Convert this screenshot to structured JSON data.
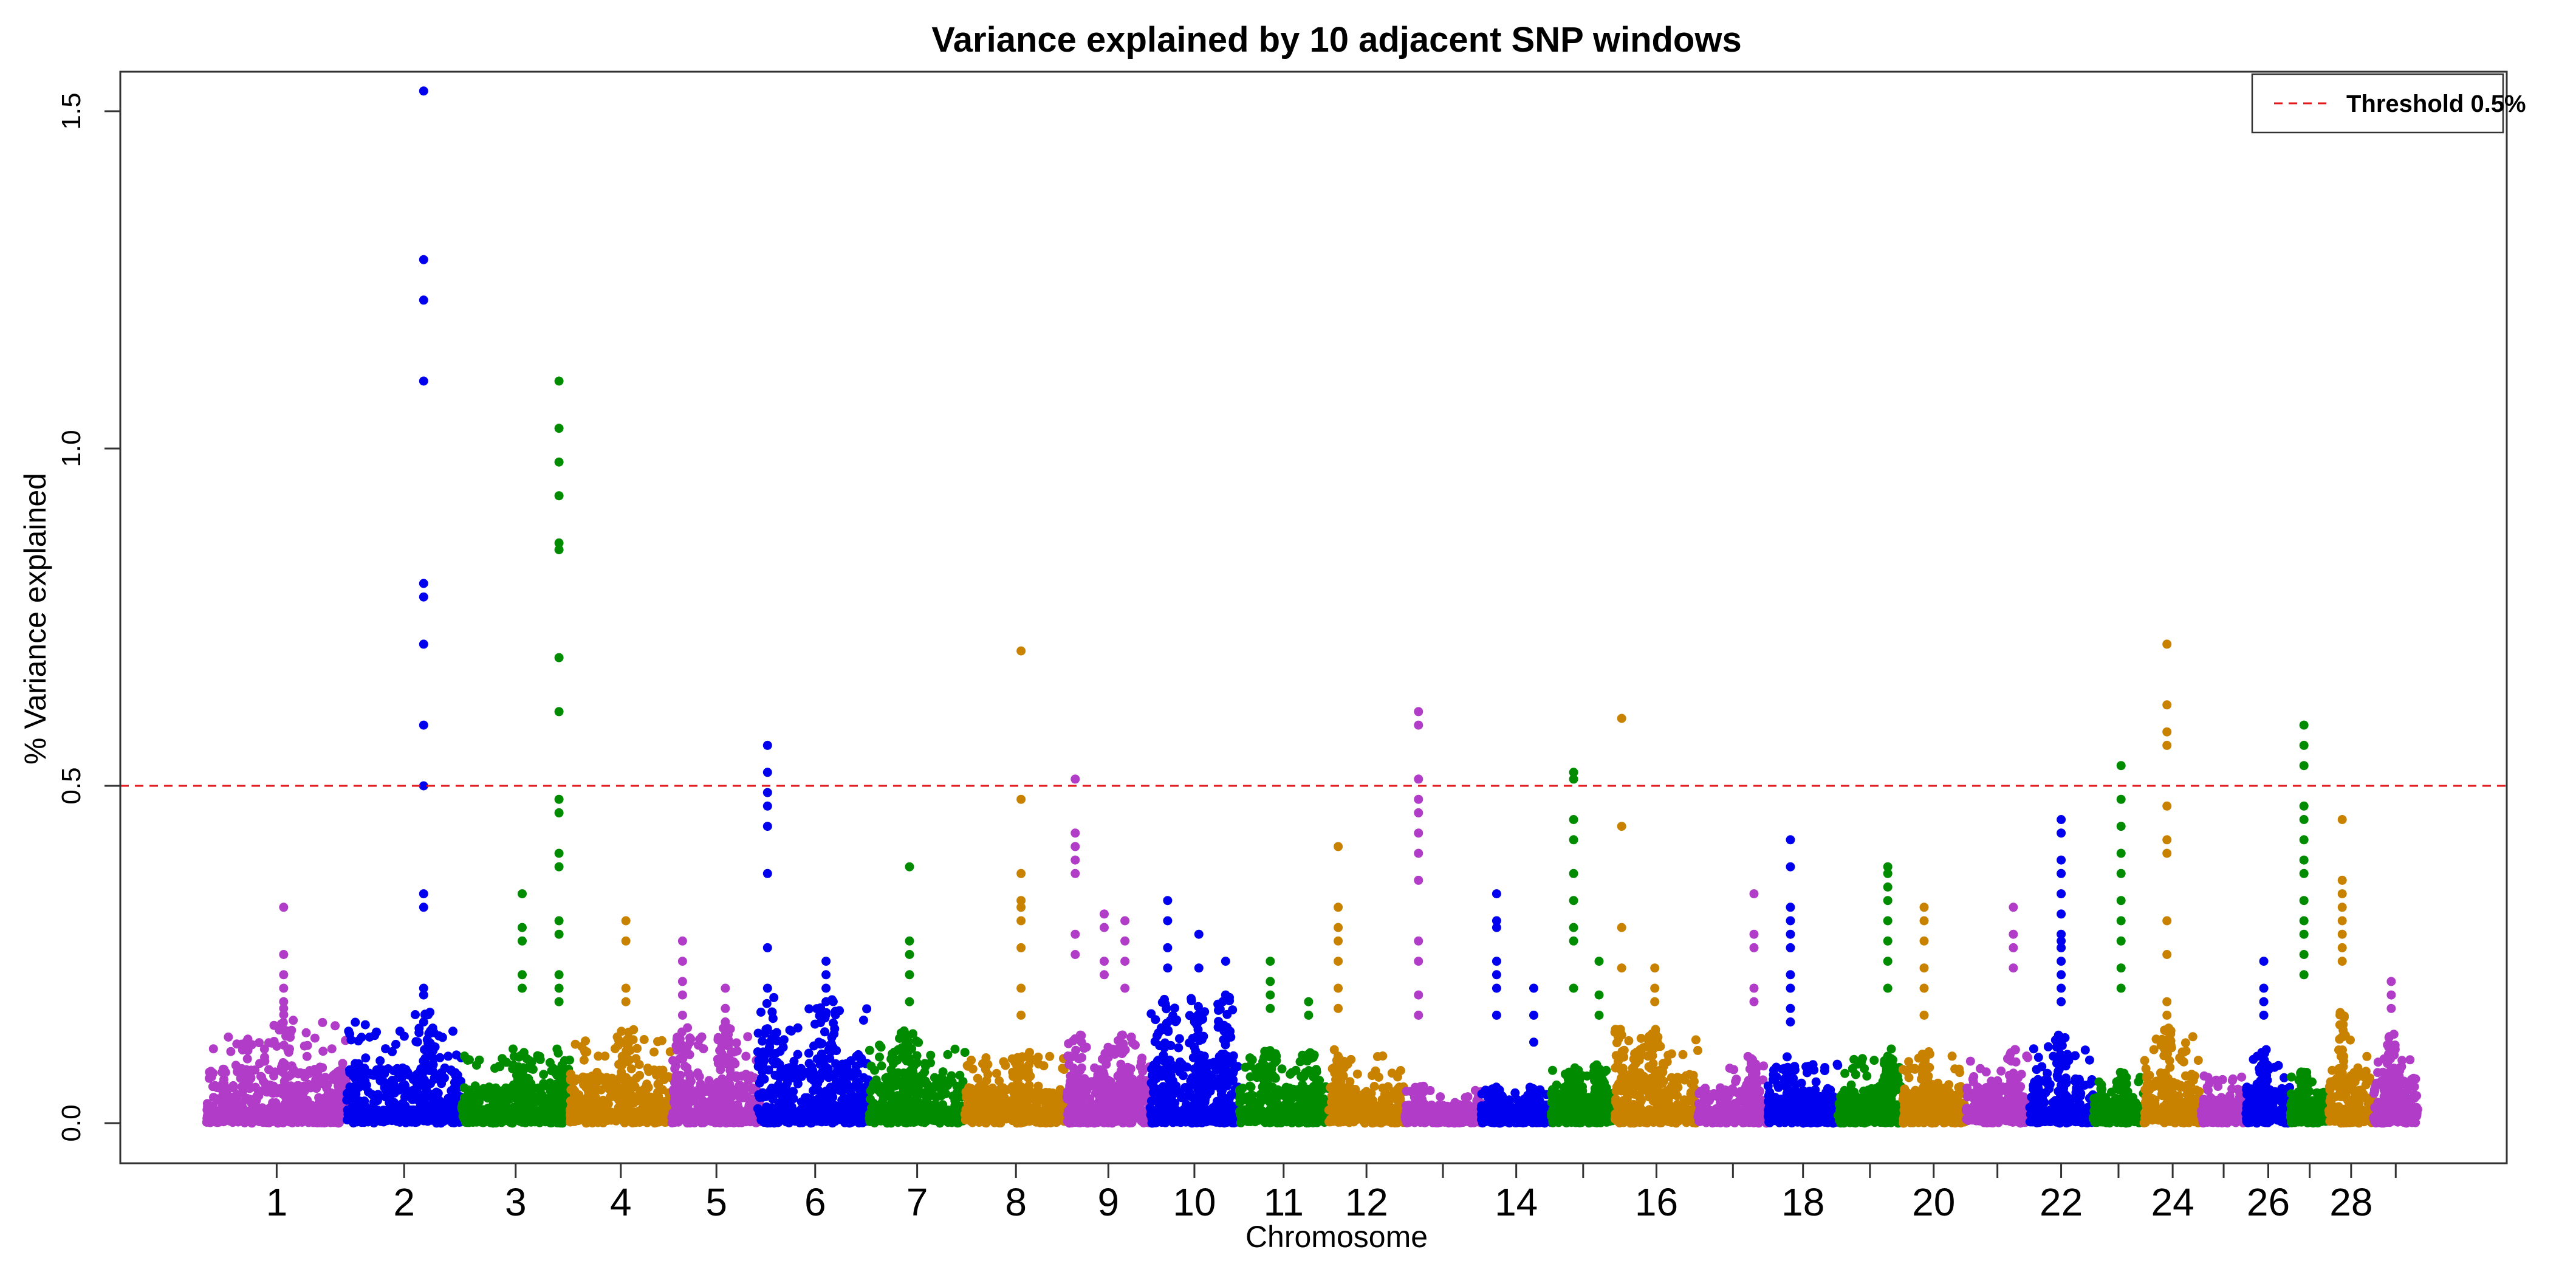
{
  "chart_data": {
    "type": "scatter",
    "subtype": "manhattan",
    "title": "Variance explained by 10 adjacent SNP windows",
    "xlabel": "Chromosome",
    "ylabel": "% Variance explained",
    "ylim": [
      -0.06,
      1.58
    ],
    "yticks": [
      0.0,
      0.5,
      1.0,
      1.5
    ],
    "ytick_labels": [
      "0.0",
      "0.5",
      "1.0",
      "1.5"
    ],
    "threshold": {
      "value": 0.5,
      "color": "#e31a1c",
      "style": "dashed"
    },
    "legend": {
      "label": "Threshold 0.5%",
      "position": "top-right"
    },
    "palette": [
      "#b03cc8",
      "#0000ee",
      "#008b00",
      "#c88200"
    ],
    "chromosomes": [
      {
        "chr": 1,
        "label": "1",
        "start": 0.0,
        "end": 11.0,
        "color": "#b03cc8",
        "base_max": 0.15,
        "peaks": [
          {
            "pos": 0.55,
            "vals": [
              0.32,
              0.25,
              0.22,
              0.2,
              0.18,
              0.17
            ]
          }
        ]
      },
      {
        "chr": 2,
        "label": "2",
        "start": 11.0,
        "end": 20.0,
        "color": "#0000ee",
        "base_max": 0.15,
        "peaks": [
          {
            "pos": 0.67,
            "vals": [
              1.53,
              1.28,
              1.22,
              1.1,
              0.8,
              0.78,
              0.71,
              0.59,
              0.5,
              0.34,
              0.32,
              0.2,
              0.19,
              0.15
            ]
          }
        ]
      },
      {
        "chr": 3,
        "label": "3",
        "start": 20.0,
        "end": 28.5,
        "color": "#008b00",
        "base_max": 0.1,
        "peaks": [
          {
            "pos": 0.56,
            "vals": [
              0.34,
              0.29,
              0.27,
              0.22,
              0.2
            ]
          },
          {
            "pos": 0.9,
            "vals": [
              1.1,
              1.03,
              0.98,
              0.93,
              0.86,
              0.85,
              0.69,
              0.61,
              0.48,
              0.46,
              0.4,
              0.38,
              0.3,
              0.28,
              0.22,
              0.2,
              0.18
            ]
          }
        ]
      },
      {
        "chr": 4,
        "label": "4",
        "start": 28.5,
        "end": 36.5,
        "color": "#c88200",
        "base_max": 0.13,
        "peaks": [
          {
            "pos": 0.55,
            "vals": [
              0.3,
              0.27,
              0.2,
              0.18
            ]
          }
        ]
      },
      {
        "chr": 5,
        "label": "5",
        "start": 36.5,
        "end": 43.5,
        "color": "#b03cc8",
        "base_max": 0.13,
        "peaks": [
          {
            "pos": 0.12,
            "vals": [
              0.27,
              0.24,
              0.21,
              0.19,
              0.16
            ]
          },
          {
            "pos": 0.6,
            "vals": [
              0.2,
              0.17,
              0.15
            ]
          }
        ]
      },
      {
        "chr": 6,
        "label": "6",
        "start": 43.5,
        "end": 52.0,
        "color": "#0000ee",
        "base_max": 0.17,
        "peaks": [
          {
            "pos": 0.06,
            "vals": [
              0.56,
              0.52,
              0.49,
              0.47,
              0.44,
              0.37,
              0.26,
              0.2,
              0.14
            ]
          },
          {
            "pos": 0.6,
            "vals": [
              0.24,
              0.22,
              0.2,
              0.18
            ]
          }
        ]
      },
      {
        "chr": 7,
        "label": "7",
        "start": 52.0,
        "end": 59.5,
        "color": "#008b00",
        "base_max": 0.13,
        "peaks": [
          {
            "pos": 0.42,
            "vals": [
              0.38,
              0.27,
              0.25,
              0.22,
              0.18
            ]
          }
        ]
      },
      {
        "chr": 8,
        "label": "8",
        "start": 59.5,
        "end": 67.5,
        "color": "#c88200",
        "base_max": 0.1,
        "peaks": [
          {
            "pos": 0.55,
            "vals": [
              0.7,
              0.48,
              0.37,
              0.33,
              0.32,
              0.3,
              0.26,
              0.2,
              0.16
            ]
          }
        ]
      },
      {
        "chr": 9,
        "label": "9",
        "start": 67.5,
        "end": 74.0,
        "color": "#b03cc8",
        "base_max": 0.12,
        "peaks": [
          {
            "pos": 0.1,
            "vals": [
              0.51,
              0.43,
              0.41,
              0.39,
              0.37,
              0.28,
              0.25
            ]
          },
          {
            "pos": 0.45,
            "vals": [
              0.31,
              0.29,
              0.24,
              0.22
            ]
          },
          {
            "pos": 0.7,
            "vals": [
              0.3,
              0.27,
              0.24,
              0.2
            ]
          }
        ]
      },
      {
        "chr": 10,
        "label": "10",
        "start": 74.0,
        "end": 81.0,
        "color": "#0000ee",
        "base_max": 0.17,
        "peaks": [
          {
            "pos": 0.2,
            "vals": [
              0.33,
              0.3,
              0.26,
              0.23
            ]
          },
          {
            "pos": 0.55,
            "vals": [
              0.28,
              0.23
            ]
          },
          {
            "pos": 0.85,
            "vals": [
              0.24,
              0.19
            ]
          }
        ]
      },
      {
        "chr": 11,
        "label": "11",
        "start": 81.0,
        "end": 88.0,
        "color": "#008b00",
        "base_max": 0.1,
        "peaks": [
          {
            "pos": 0.35,
            "vals": [
              0.24,
              0.21,
              0.19,
              0.17
            ]
          },
          {
            "pos": 0.78,
            "vals": [
              0.18,
              0.16
            ]
          }
        ]
      },
      {
        "chr": 12,
        "label": "12",
        "start": 88.0,
        "end": 94.0,
        "color": "#c88200",
        "base_max": 0.1,
        "peaks": [
          {
            "pos": 0.13,
            "vals": [
              0.41,
              0.32,
              0.29,
              0.27,
              0.24,
              0.2,
              0.17
            ]
          }
        ]
      },
      {
        "chr": 13,
        "label": "",
        "start": 94.0,
        "end": 100.0,
        "color": "#b03cc8",
        "base_max": 0.05,
        "peaks": [
          {
            "pos": 0.18,
            "vals": [
              0.61,
              0.59,
              0.51,
              0.48,
              0.46,
              0.43,
              0.4,
              0.36,
              0.27,
              0.24,
              0.19,
              0.16
            ]
          }
        ]
      },
      {
        "chr": 14,
        "label": "14",
        "start": 100.0,
        "end": 105.5,
        "color": "#0000ee",
        "base_max": 0.05,
        "peaks": [
          {
            "pos": 0.22,
            "vals": [
              0.34,
              0.3,
              0.29,
              0.24,
              0.22,
              0.2,
              0.16
            ]
          },
          {
            "pos": 0.75,
            "vals": [
              0.2,
              0.16,
              0.12
            ]
          }
        ]
      },
      {
        "chr": 15,
        "label": "",
        "start": 105.5,
        "end": 110.5,
        "color": "#008b00",
        "base_max": 0.08,
        "peaks": [
          {
            "pos": 0.35,
            "vals": [
              0.52,
              0.51,
              0.45,
              0.42,
              0.37,
              0.33,
              0.29,
              0.27,
              0.2
            ]
          },
          {
            "pos": 0.75,
            "vals": [
              0.24,
              0.19,
              0.16
            ]
          }
        ]
      },
      {
        "chr": 16,
        "label": "16",
        "start": 110.5,
        "end": 117.0,
        "color": "#c88200",
        "base_max": 0.13,
        "peaks": [
          {
            "pos": 0.08,
            "vals": [
              0.6,
              0.44,
              0.29,
              0.23
            ]
          },
          {
            "pos": 0.48,
            "vals": [
              0.23,
              0.2,
              0.18
            ]
          }
        ]
      },
      {
        "chr": 17,
        "label": "",
        "start": 117.0,
        "end": 122.5,
        "color": "#b03cc8",
        "base_max": 0.09,
        "peaks": [
          {
            "pos": 0.8,
            "vals": [
              0.34,
              0.28,
              0.26,
              0.2,
              0.18
            ]
          }
        ]
      },
      {
        "chr": 18,
        "label": "18",
        "start": 122.5,
        "end": 128.0,
        "color": "#0000ee",
        "base_max": 0.09,
        "peaks": [
          {
            "pos": 0.32,
            "vals": [
              0.42,
              0.38,
              0.32,
              0.3,
              0.28,
              0.26,
              0.22,
              0.2,
              0.17,
              0.15
            ]
          }
        ]
      },
      {
        "chr": 19,
        "label": "",
        "start": 128.0,
        "end": 133.0,
        "color": "#008b00",
        "base_max": 0.1,
        "peaks": [
          {
            "pos": 0.78,
            "vals": [
              0.38,
              0.37,
              0.35,
              0.33,
              0.3,
              0.27,
              0.24,
              0.2
            ]
          }
        ]
      },
      {
        "chr": 20,
        "label": "20",
        "start": 133.0,
        "end": 138.0,
        "color": "#c88200",
        "base_max": 0.1,
        "peaks": [
          {
            "pos": 0.35,
            "vals": [
              0.32,
              0.3,
              0.27,
              0.23,
              0.2,
              0.16
            ]
          }
        ]
      },
      {
        "chr": 21,
        "label": "",
        "start": 138.0,
        "end": 143.0,
        "color": "#b03cc8",
        "base_max": 0.1,
        "peaks": [
          {
            "pos": 0.75,
            "vals": [
              0.32,
              0.28,
              0.26,
              0.23
            ]
          }
        ]
      },
      {
        "chr": 22,
        "label": "22",
        "start": 143.0,
        "end": 148.0,
        "color": "#0000ee",
        "base_max": 0.12,
        "peaks": [
          {
            "pos": 0.5,
            "vals": [
              0.45,
              0.43,
              0.39,
              0.37,
              0.34,
              0.31,
              0.28,
              0.27,
              0.26,
              0.24,
              0.22,
              0.2,
              0.18
            ]
          }
        ]
      },
      {
        "chr": 23,
        "label": "",
        "start": 148.0,
        "end": 152.0,
        "color": "#008b00",
        "base_max": 0.07,
        "peaks": [
          {
            "pos": 0.55,
            "vals": [
              0.53,
              0.48,
              0.44,
              0.4,
              0.37,
              0.33,
              0.3,
              0.27,
              0.23,
              0.2
            ]
          }
        ]
      },
      {
        "chr": 24,
        "label": "24",
        "start": 152.0,
        "end": 156.5,
        "color": "#c88200",
        "base_max": 0.13,
        "peaks": [
          {
            "pos": 0.4,
            "vals": [
              0.71,
              0.62,
              0.58,
              0.56,
              0.47,
              0.42,
              0.4,
              0.3,
              0.25,
              0.18,
              0.16
            ]
          }
        ]
      },
      {
        "chr": 25,
        "label": "",
        "start": 156.5,
        "end": 160.0,
        "color": "#b03cc8",
        "base_max": 0.07,
        "peaks": []
      },
      {
        "chr": 26,
        "label": "26",
        "start": 160.0,
        "end": 163.5,
        "color": "#0000ee",
        "base_max": 0.1,
        "peaks": [
          {
            "pos": 0.4,
            "vals": [
              0.24,
              0.2,
              0.18,
              0.16
            ]
          }
        ]
      },
      {
        "chr": 27,
        "label": "",
        "start": 163.5,
        "end": 166.5,
        "color": "#008b00",
        "base_max": 0.07,
        "peaks": [
          {
            "pos": 0.35,
            "vals": [
              0.59,
              0.56,
              0.53,
              0.47,
              0.45,
              0.42,
              0.39,
              0.37,
              0.33,
              0.3,
              0.28,
              0.25,
              0.22
            ]
          }
        ]
      },
      {
        "chr": 28,
        "label": "28",
        "start": 166.5,
        "end": 170.0,
        "color": "#c88200",
        "base_max": 0.15,
        "peaks": [
          {
            "pos": 0.3,
            "vals": [
              0.45,
              0.36,
              0.34,
              0.32,
              0.3,
              0.28,
              0.26,
              0.24
            ]
          }
        ]
      },
      {
        "chr": 29,
        "label": "",
        "start": 170.0,
        "end": 173.5,
        "color": "#b03cc8",
        "base_max": 0.12,
        "peaks": [
          {
            "pos": 0.4,
            "vals": [
              0.21,
              0.19,
              0.17
            ]
          }
        ]
      }
    ],
    "genome_length": 173.5
  }
}
